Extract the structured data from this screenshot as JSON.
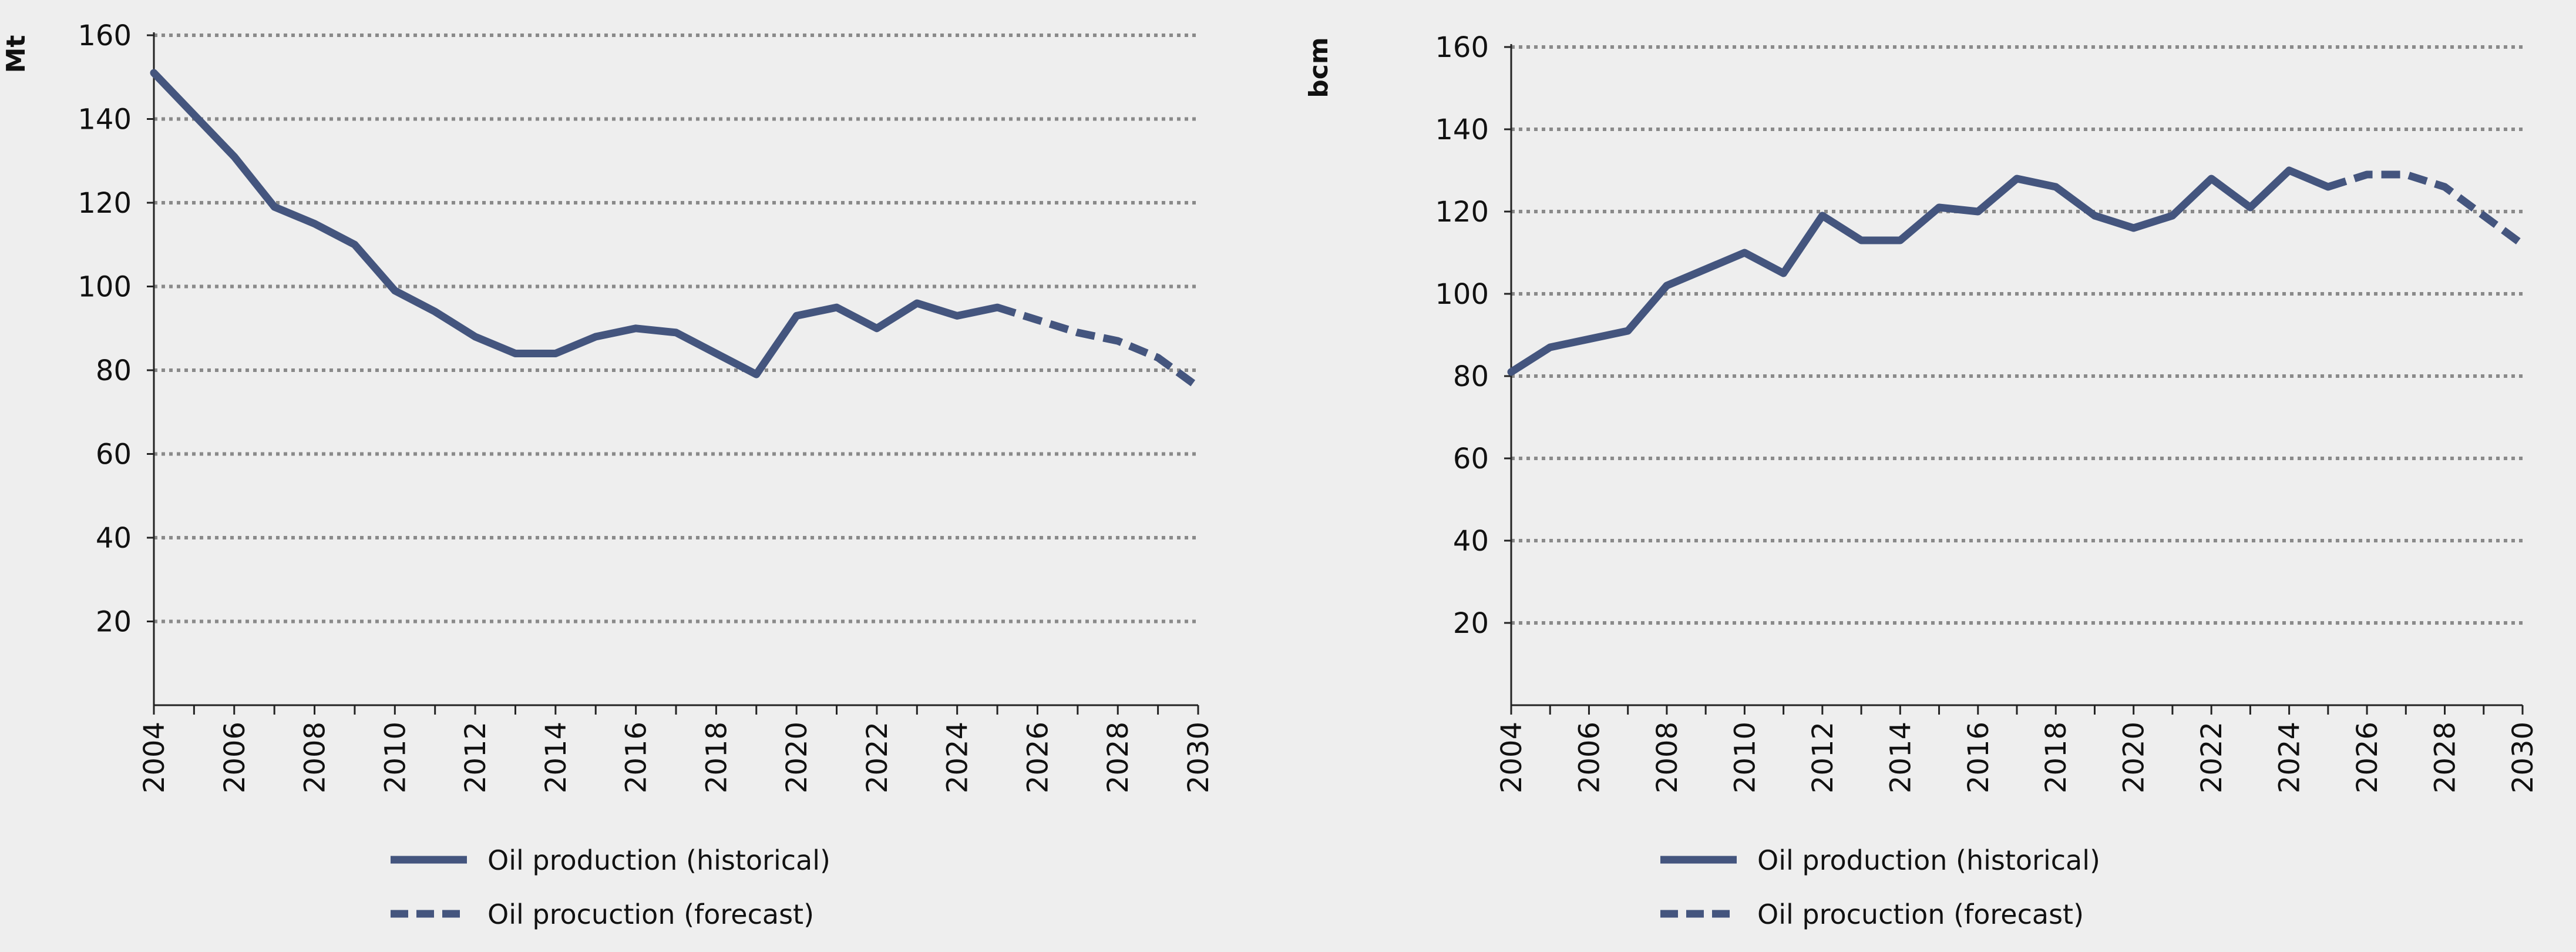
{
  "colors": {
    "background": "#eeeeee",
    "series": "#44557e",
    "grid": "#8a8a8a",
    "axis": "#222222"
  },
  "chart_data": [
    {
      "type": "line",
      "ylabel": "Mt",
      "xlabel": "",
      "xlim": [
        2004,
        2030
      ],
      "ylim": [
        0,
        160
      ],
      "yticks": [
        20,
        40,
        60,
        80,
        100,
        120,
        140,
        160
      ],
      "xticks": [
        2004,
        2006,
        2008,
        2010,
        2012,
        2014,
        2016,
        2018,
        2020,
        2022,
        2024,
        2026,
        2028,
        2030
      ],
      "grid": true,
      "legend_position": "bottom",
      "series": [
        {
          "name": "Oil production (historical)",
          "style": "solid",
          "x": [
            2004,
            2005,
            2006,
            2007,
            2008,
            2009,
            2010,
            2011,
            2012,
            2013,
            2014,
            2015,
            2016,
            2017,
            2018,
            2019,
            2020,
            2021,
            2022,
            2023,
            2024,
            2025
          ],
          "y": [
            151,
            141,
            131,
            119,
            115,
            110,
            99,
            94,
            88,
            84,
            84,
            88,
            90,
            89,
            84,
            79,
            93,
            95,
            90,
            96,
            93,
            95
          ]
        },
        {
          "name": "Oil procuction (forecast)",
          "style": "dashed",
          "x": [
            2025,
            2026,
            2027,
            2028,
            2029,
            2030
          ],
          "y": [
            95,
            92,
            89,
            87,
            83,
            76
          ]
        }
      ]
    },
    {
      "type": "line",
      "ylabel": "bcm",
      "xlabel": "",
      "xlim": [
        2004,
        2030
      ],
      "ylim": [
        0,
        160
      ],
      "yticks": [
        20,
        40,
        60,
        80,
        100,
        120,
        140,
        160
      ],
      "xticks": [
        2004,
        2006,
        2008,
        2010,
        2012,
        2014,
        2016,
        2018,
        2020,
        2022,
        2024,
        2026,
        2028,
        2030
      ],
      "grid": true,
      "legend_position": "bottom",
      "series": [
        {
          "name": "Oil production (historical)",
          "style": "solid",
          "x": [
            2004,
            2005,
            2006,
            2007,
            2008,
            2009,
            2010,
            2011,
            2012,
            2013,
            2014,
            2015,
            2016,
            2017,
            2018,
            2019,
            2020,
            2021,
            2022,
            2023,
            2024,
            2025
          ],
          "y": [
            81,
            87,
            89,
            91,
            102,
            106,
            110,
            105,
            119,
            113,
            113,
            121,
            120,
            128,
            126,
            119,
            116,
            119,
            128,
            121,
            130,
            126
          ]
        },
        {
          "name": "Oil procuction (forecast)",
          "style": "dashed",
          "x": [
            2025,
            2026,
            2027,
            2028,
            2029,
            2030
          ],
          "y": [
            126,
            129,
            129,
            126,
            119,
            112
          ]
        }
      ]
    }
  ]
}
